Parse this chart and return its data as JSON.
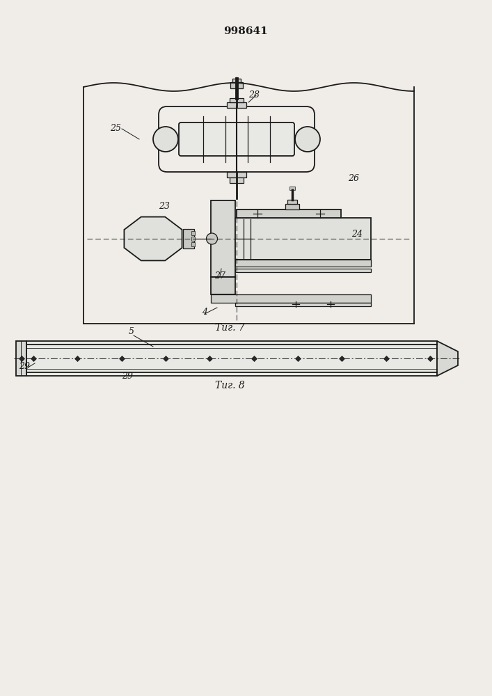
{
  "title": "998641",
  "bg_color": "#f0ede8",
  "line_color": "#1a1a1a",
  "fig_width": 7.07,
  "fig_height": 10.0,
  "fig1_label": "Τиг. 7",
  "fig2_label": "Τиг. 8",
  "label_fontsize": 10,
  "title_fontsize": 11
}
